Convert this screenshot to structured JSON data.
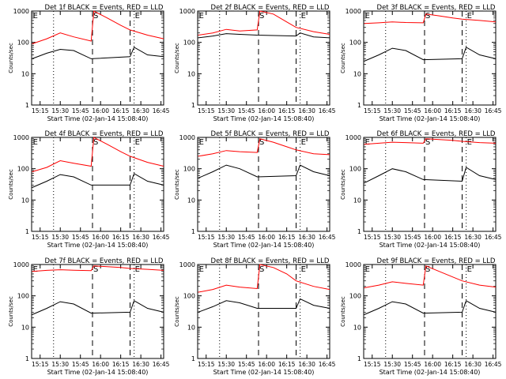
{
  "figure": {
    "ylabel": "Counts/sec",
    "xlabel": "Start Time (02-Jan-14 15:08:40)",
    "x_ticks": [
      "15:15",
      "15:30",
      "15:45",
      "16:00",
      "16:15",
      "16:30",
      "16:45"
    ],
    "y_ticks": [
      "1",
      "10",
      "100",
      "1000"
    ],
    "colors": {
      "events": "#000000",
      "lld": "#ff0000",
      "axes": "#000000"
    }
  },
  "chart_data": [
    {
      "type": "line",
      "title": "Det 1f BLACK = Events, RED = LLD",
      "xlim": [
        "15:08:40",
        "16:47:00"
      ],
      "ylim": [
        1,
        1000
      ],
      "y_scale": "log",
      "markers": [
        {
          "label": "E",
          "time": "15:09"
        },
        {
          "label": "S",
          "time": "15:54"
        },
        {
          "label": "E",
          "time": "16:25"
        }
      ],
      "dashed_lines": [
        "15:54",
        "16:22"
      ],
      "dotted_lines": [
        "15:25",
        "16:25"
      ],
      "series": [
        {
          "name": "Events",
          "color": "#000000",
          "x": [
            "15:09",
            "15:20",
            "15:30",
            "15:40",
            "15:53",
            "16:22",
            "16:25",
            "16:35",
            "16:47"
          ],
          "y": [
            30,
            45,
            60,
            55,
            30,
            35,
            70,
            40,
            35
          ]
        },
        {
          "name": "LLD",
          "color": "#ff0000",
          "x": [
            "15:09",
            "15:20",
            "15:30",
            "15:40",
            "15:53",
            "15:55",
            "16:05",
            "16:15",
            "16:22",
            "16:35",
            "16:47"
          ],
          "y": [
            90,
            130,
            200,
            150,
            110,
            1000,
            600,
            350,
            250,
            170,
            130
          ]
        }
      ]
    },
    {
      "type": "line",
      "title": "Det 2f BLACK = Events, RED = LLD",
      "xlim": [
        "15:08:40",
        "16:47:00"
      ],
      "ylim": [
        1,
        1000
      ],
      "y_scale": "log",
      "markers": [
        {
          "label": "E",
          "time": "15:09"
        },
        {
          "label": "S",
          "time": "15:54"
        },
        {
          "label": "E",
          "time": "16:25"
        }
      ],
      "dashed_lines": [
        "15:54",
        "16:22"
      ],
      "dotted_lines": [
        "15:25",
        "16:25"
      ],
      "series": [
        {
          "name": "Events",
          "color": "#000000",
          "x": [
            "15:09",
            "15:20",
            "15:30",
            "15:40",
            "15:53",
            "16:22",
            "16:25",
            "16:35",
            "16:47"
          ],
          "y": [
            140,
            160,
            190,
            180,
            170,
            160,
            200,
            150,
            140
          ]
        },
        {
          "name": "LLD",
          "color": "#ff0000",
          "x": [
            "15:09",
            "15:20",
            "15:30",
            "15:40",
            "15:53",
            "15:55",
            "16:05",
            "16:15",
            "16:22",
            "16:35",
            "16:47"
          ],
          "y": [
            170,
            200,
            260,
            230,
            250,
            1000,
            800,
            450,
            300,
            220,
            180
          ]
        }
      ]
    },
    {
      "type": "line",
      "title": "Det 3f BLACK = Events, RED = LLD",
      "xlim": [
        "15:08:40",
        "16:47:00"
      ],
      "ylim": [
        1,
        1000
      ],
      "y_scale": "log",
      "markers": [
        {
          "label": "E",
          "time": "15:09"
        },
        {
          "label": "S",
          "time": "15:54"
        },
        {
          "label": "E",
          "time": "16:25"
        }
      ],
      "dashed_lines": [
        "15:54",
        "16:22"
      ],
      "dotted_lines": [
        "15:25",
        "16:25"
      ],
      "series": [
        {
          "name": "Events",
          "color": "#000000",
          "x": [
            "15:09",
            "15:20",
            "15:30",
            "15:40",
            "15:53",
            "16:22",
            "16:25",
            "16:35",
            "16:47"
          ],
          "y": [
            25,
            40,
            65,
            55,
            28,
            30,
            70,
            40,
            30
          ]
        },
        {
          "name": "LLD",
          "color": "#ff0000",
          "x": [
            "15:09",
            "15:20",
            "15:30",
            "15:40",
            "15:53",
            "15:55",
            "16:05",
            "16:15",
            "16:22",
            "16:35",
            "16:47"
          ],
          "y": [
            400,
            420,
            450,
            430,
            420,
            800,
            700,
            600,
            550,
            500,
            450
          ]
        }
      ]
    },
    {
      "type": "line",
      "title": "Det 4f BLACK = Events, RED = LLD",
      "xlim": [
        "15:08:40",
        "16:47:00"
      ],
      "ylim": [
        1,
        1000
      ],
      "y_scale": "log",
      "markers": [
        {
          "label": "E",
          "time": "15:09"
        },
        {
          "label": "S",
          "time": "15:54"
        },
        {
          "label": "E",
          "time": "16:25"
        }
      ],
      "dashed_lines": [
        "15:54",
        "16:22"
      ],
      "dotted_lines": [
        "15:25",
        "16:25"
      ],
      "series": [
        {
          "name": "Events",
          "color": "#000000",
          "x": [
            "15:09",
            "15:20",
            "15:30",
            "15:40",
            "15:53",
            "16:22",
            "16:25",
            "16:35",
            "16:47"
          ],
          "y": [
            25,
            40,
            65,
            55,
            30,
            30,
            70,
            40,
            30
          ]
        },
        {
          "name": "LLD",
          "color": "#ff0000",
          "x": [
            "15:09",
            "15:20",
            "15:30",
            "15:40",
            "15:53",
            "15:55",
            "16:05",
            "16:15",
            "16:22",
            "16:35",
            "16:47"
          ],
          "y": [
            80,
            110,
            180,
            150,
            120,
            1000,
            600,
            350,
            250,
            160,
            120
          ]
        }
      ]
    },
    {
      "type": "line",
      "title": "Det 5f BLACK = Events, RED = LLD",
      "xlim": [
        "15:08:40",
        "16:47:00"
      ],
      "ylim": [
        1,
        1000
      ],
      "y_scale": "log",
      "markers": [
        {
          "label": "E",
          "time": "15:09"
        },
        {
          "label": "S",
          "time": "15:54"
        },
        {
          "label": "E",
          "time": "16:25"
        }
      ],
      "dashed_lines": [
        "15:54",
        "16:22"
      ],
      "dotted_lines": [
        "15:25",
        "16:25"
      ],
      "series": [
        {
          "name": "Events",
          "color": "#000000",
          "x": [
            "15:09",
            "15:20",
            "15:30",
            "15:40",
            "15:53",
            "16:22",
            "16:25",
            "16:35",
            "16:47"
          ],
          "y": [
            50,
            80,
            130,
            100,
            55,
            60,
            130,
            80,
            60
          ]
        },
        {
          "name": "LLD",
          "color": "#ff0000",
          "x": [
            "15:09",
            "15:20",
            "15:30",
            "15:40",
            "15:53",
            "15:55",
            "16:05",
            "16:15",
            "16:22",
            "16:35",
            "16:47"
          ],
          "y": [
            250,
            300,
            380,
            350,
            330,
            900,
            700,
            500,
            400,
            300,
            280
          ]
        }
      ]
    },
    {
      "type": "line",
      "title": "Det 6f BLACK = Events, RED = LLD",
      "xlim": [
        "15:08:40",
        "16:47:00"
      ],
      "ylim": [
        1,
        1000
      ],
      "y_scale": "log",
      "markers": [
        {
          "label": "E",
          "time": "15:09"
        },
        {
          "label": "S",
          "time": "15:54"
        },
        {
          "label": "E",
          "time": "16:25"
        }
      ],
      "dashed_lines": [
        "15:54",
        "16:22"
      ],
      "dotted_lines": [
        "15:25",
        "16:25"
      ],
      "series": [
        {
          "name": "Events",
          "color": "#000000",
          "x": [
            "15:09",
            "15:20",
            "15:30",
            "15:40",
            "15:53",
            "16:22",
            "16:25",
            "16:35",
            "16:47"
          ],
          "y": [
            35,
            60,
            100,
            80,
            45,
            40,
            110,
            60,
            45
          ]
        },
        {
          "name": "LLD",
          "color": "#ff0000",
          "x": [
            "15:09",
            "15:20",
            "15:30",
            "15:40",
            "15:53",
            "15:55",
            "16:05",
            "16:15",
            "16:22",
            "16:35",
            "16:47"
          ],
          "y": [
            600,
            650,
            700,
            680,
            650,
            900,
            850,
            800,
            750,
            680,
            650
          ]
        }
      ]
    },
    {
      "type": "line",
      "title": "Det 7f BLACK = Events, RED = LLD",
      "xlim": [
        "15:08:40",
        "16:47:00"
      ],
      "ylim": [
        1,
        1000
      ],
      "y_scale": "log",
      "markers": [
        {
          "label": "E",
          "time": "15:09"
        },
        {
          "label": "S",
          "time": "15:54"
        },
        {
          "label": "E",
          "time": "16:25"
        }
      ],
      "dashed_lines": [
        "15:54",
        "16:22"
      ],
      "dotted_lines": [
        "15:25",
        "16:25"
      ],
      "series": [
        {
          "name": "Events",
          "color": "#000000",
          "x": [
            "15:09",
            "15:20",
            "15:30",
            "15:40",
            "15:53",
            "16:22",
            "16:25",
            "16:35",
            "16:47"
          ],
          "y": [
            25,
            40,
            65,
            55,
            28,
            30,
            70,
            40,
            30
          ]
        },
        {
          "name": "LLD",
          "color": "#ff0000",
          "x": [
            "15:09",
            "15:20",
            "15:30",
            "15:40",
            "15:53",
            "15:55",
            "16:05",
            "16:15",
            "16:22",
            "16:35",
            "16:47"
          ],
          "y": [
            600,
            650,
            680,
            660,
            640,
            900,
            850,
            800,
            750,
            700,
            650
          ]
        }
      ]
    },
    {
      "type": "line",
      "title": "Det 8f BLACK = Events, RED = LLD",
      "xlim": [
        "15:08:40",
        "16:47:00"
      ],
      "ylim": [
        1,
        1000
      ],
      "y_scale": "log",
      "markers": [
        {
          "label": "E",
          "time": "15:09"
        },
        {
          "label": "S",
          "time": "15:54"
        },
        {
          "label": "E",
          "time": "16:25"
        }
      ],
      "dashed_lines": [
        "15:54",
        "16:22"
      ],
      "dotted_lines": [
        "15:25",
        "16:25"
      ],
      "series": [
        {
          "name": "Events",
          "color": "#000000",
          "x": [
            "15:09",
            "15:20",
            "15:30",
            "15:40",
            "15:53",
            "16:22",
            "16:25",
            "16:35",
            "16:47"
          ],
          "y": [
            30,
            45,
            70,
            60,
            40,
            40,
            80,
            50,
            40
          ]
        },
        {
          "name": "LLD",
          "color": "#ff0000",
          "x": [
            "15:09",
            "15:20",
            "15:30",
            "15:40",
            "15:53",
            "15:55",
            "16:05",
            "16:15",
            "16:22",
            "16:35",
            "16:47"
          ],
          "y": [
            130,
            160,
            220,
            190,
            170,
            1000,
            800,
            500,
            300,
            200,
            160
          ]
        }
      ]
    },
    {
      "type": "line",
      "title": "Det 9f BLACK = Events, RED = LLD",
      "xlim": [
        "15:08:40",
        "16:47:00"
      ],
      "ylim": [
        1,
        1000
      ],
      "y_scale": "log",
      "markers": [
        {
          "label": "E",
          "time": "15:09"
        },
        {
          "label": "S",
          "time": "15:54"
        },
        {
          "label": "E",
          "time": "16:25"
        }
      ],
      "dashed_lines": [
        "15:54",
        "16:22"
      ],
      "dotted_lines": [
        "15:25",
        "16:25"
      ],
      "series": [
        {
          "name": "Events",
          "color": "#000000",
          "x": [
            "15:09",
            "15:20",
            "15:30",
            "15:40",
            "15:53",
            "16:22",
            "16:25",
            "16:35",
            "16:47"
          ],
          "y": [
            25,
            40,
            65,
            55,
            28,
            30,
            70,
            40,
            30
          ]
        },
        {
          "name": "LLD",
          "color": "#ff0000",
          "x": [
            "15:09",
            "15:20",
            "15:30",
            "15:40",
            "15:53",
            "15:55",
            "16:05",
            "16:15",
            "16:22",
            "16:35",
            "16:47"
          ],
          "y": [
            180,
            220,
            280,
            250,
            220,
            900,
            600,
            400,
            300,
            220,
            190
          ]
        }
      ]
    }
  ]
}
